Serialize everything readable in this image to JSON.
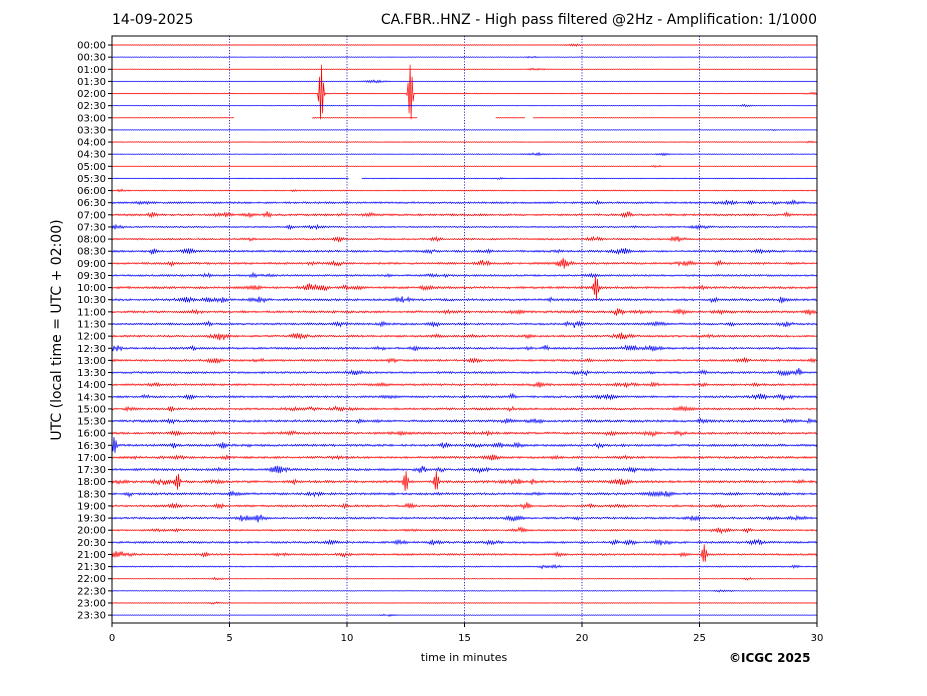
{
  "header": {
    "date": "14-09-2025",
    "title": "CA.FBR..HNZ - High pass filtered @2Hz - Amplification: 1/1000"
  },
  "footer": {
    "copyright": "©ICGC 2025"
  },
  "colors": {
    "trace_even": "#ff0000",
    "trace_odd": "#0000ff",
    "grid": "#0000aa"
  },
  "chart_data": {
    "type": "line",
    "subtype": "helicorder",
    "xlabel": "time in minutes",
    "ylabel": "UTC (local time = UTC + 02:00)",
    "xlim": [
      0,
      30
    ],
    "xticks": [
      0,
      5,
      10,
      15,
      20,
      25,
      30
    ],
    "grid": "vertical dotted at 5 minute intervals",
    "row_labels": [
      "00:00",
      "00:30",
      "01:00",
      "01:30",
      "02:00",
      "02:30",
      "03:00",
      "03:30",
      "04:00",
      "04:30",
      "05:00",
      "05:30",
      "06:00",
      "06:30",
      "07:00",
      "07:30",
      "08:00",
      "08:30",
      "09:00",
      "09:30",
      "10:00",
      "10:30",
      "11:00",
      "11:30",
      "12:00",
      "12:30",
      "13:00",
      "13:30",
      "14:00",
      "14:30",
      "15:00",
      "15:30",
      "16:00",
      "16:30",
      "17:00",
      "17:30",
      "18:00",
      "18:30",
      "19:00",
      "19:30",
      "20:00",
      "20:30",
      "21:00",
      "21:30",
      "22:00",
      "22:30",
      "23:00",
      "23:30"
    ],
    "activity_level": [
      0.1,
      0.1,
      0.1,
      0.1,
      0.1,
      0.1,
      0.1,
      0.1,
      0.1,
      0.2,
      0.1,
      0.1,
      0.2,
      0.7,
      0.8,
      0.5,
      0.6,
      0.8,
      0.8,
      0.7,
      0.9,
      0.9,
      0.9,
      0.8,
      0.8,
      0.8,
      0.8,
      0.8,
      0.8,
      0.8,
      0.8,
      1.0,
      0.9,
      0.9,
      0.9,
      0.9,
      1.0,
      0.9,
      0.8,
      0.8,
      0.6,
      0.8,
      0.7,
      0.3,
      0.2,
      0.1,
      0.1,
      0.1
    ],
    "events": [
      {
        "row": "02:00",
        "minute": 8.9,
        "amplitude": 2.6
      },
      {
        "row": "02:00",
        "minute": 12.7,
        "amplitude": 2.6
      },
      {
        "row": "10:00",
        "minute": 20.6,
        "amplitude": 1.0
      },
      {
        "row": "18:00",
        "minute": 12.5,
        "amplitude": 0.9
      },
      {
        "row": "18:00",
        "minute": 13.8,
        "amplitude": 0.8
      },
      {
        "row": "18:00",
        "minute": 2.8,
        "amplitude": 0.7
      },
      {
        "row": "21:00",
        "minute": 25.2,
        "amplitude": 0.8
      },
      {
        "row": "16:30",
        "minute": 0.1,
        "amplitude": 0.7
      }
    ],
    "gaps": [
      {
        "row": "03:00",
        "start": 5.2,
        "end": 8.5
      },
      {
        "row": "03:00",
        "start": 13.0,
        "end": 16.3
      },
      {
        "row": "03:00",
        "start": 17.6,
        "end": 17.9
      },
      {
        "row": "05:30",
        "start": 10.1,
        "end": 10.6
      }
    ]
  }
}
